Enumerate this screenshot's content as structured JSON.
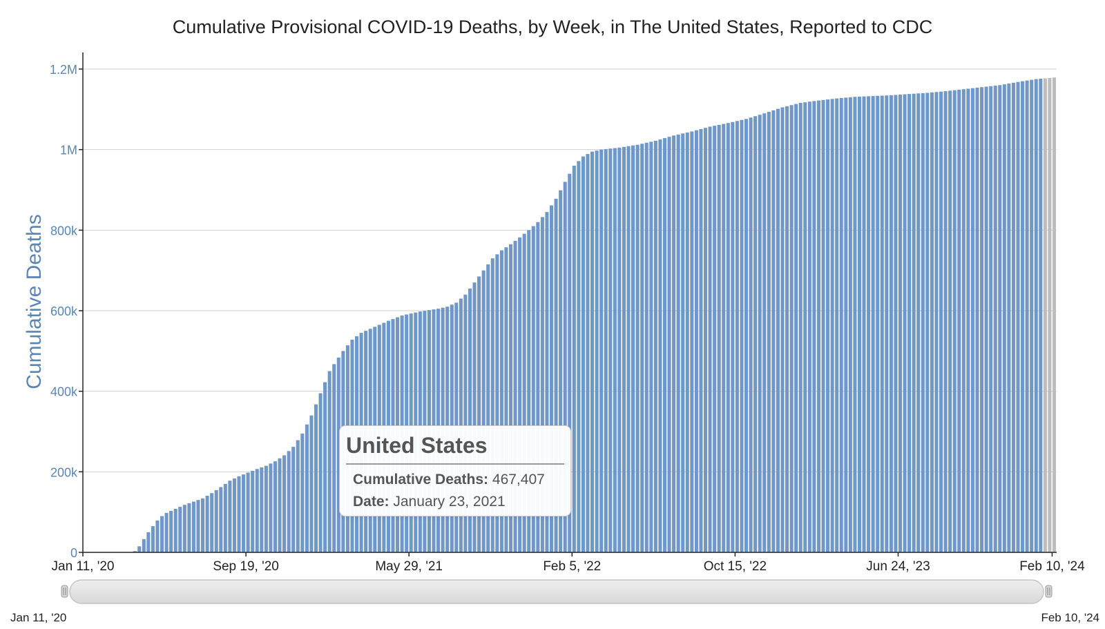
{
  "chart_data": {
    "type": "bar",
    "title": "Cumulative Provisional COVID-19 Deaths, by Week, in The United States, Reported to CDC",
    "xlabel": "",
    "ylabel": "Cumulative Deaths",
    "ylim": [
      0,
      1200000
    ],
    "y_ticks": [
      {
        "value": 0,
        "label": "0"
      },
      {
        "value": 200000,
        "label": "200k"
      },
      {
        "value": 400000,
        "label": "400k"
      },
      {
        "value": 600000,
        "label": "600k"
      },
      {
        "value": 800000,
        "label": "800k"
      },
      {
        "value": 1000000,
        "label": "1M"
      },
      {
        "value": 1200000,
        "label": "1.2M"
      }
    ],
    "x_ticks": [
      {
        "week": 0,
        "label": "Jan 11, '20"
      },
      {
        "week": 36,
        "label": "Sep 19, '20"
      },
      {
        "week": 72,
        "label": "May 29, '21"
      },
      {
        "week": 108,
        "label": "Feb 5, '22"
      },
      {
        "week": 144,
        "label": "Oct 15, '22"
      },
      {
        "week": 180,
        "label": "Jun 24, '23"
      },
      {
        "week": 214,
        "label": "Feb 10, '24"
      }
    ],
    "grid": true,
    "bar_color": "#6f97c7",
    "provisional_color": "#bdbdbd",
    "provisional_weeks": 3,
    "anchors": [
      [
        0,
        0
      ],
      [
        10,
        0
      ],
      [
        11,
        3000
      ],
      [
        12,
        15000
      ],
      [
        13,
        33000
      ],
      [
        14,
        50000
      ],
      [
        15,
        65000
      ],
      [
        16,
        79000
      ],
      [
        17,
        90000
      ],
      [
        18,
        98000
      ],
      [
        20,
        108000
      ],
      [
        22,
        118000
      ],
      [
        24,
        126000
      ],
      [
        26,
        134000
      ],
      [
        28,
        147000
      ],
      [
        30,
        162000
      ],
      [
        32,
        178000
      ],
      [
        34,
        189000
      ],
      [
        36,
        198000
      ],
      [
        38,
        207000
      ],
      [
        40,
        215000
      ],
      [
        42,
        226000
      ],
      [
        44,
        241000
      ],
      [
        46,
        262000
      ],
      [
        48,
        295000
      ],
      [
        50,
        340000
      ],
      [
        52,
        395000
      ],
      [
        54,
        450000
      ],
      [
        55,
        467407
      ],
      [
        57,
        500000
      ],
      [
        59,
        528000
      ],
      [
        61,
        545000
      ],
      [
        64,
        560000
      ],
      [
        67,
        575000
      ],
      [
        70,
        588000
      ],
      [
        74,
        598000
      ],
      [
        78,
        605000
      ],
      [
        80,
        610000
      ],
      [
        82,
        620000
      ],
      [
        84,
        640000
      ],
      [
        86,
        670000
      ],
      [
        88,
        700000
      ],
      [
        90,
        730000
      ],
      [
        92,
        750000
      ],
      [
        94,
        765000
      ],
      [
        96,
        782000
      ],
      [
        98,
        800000
      ],
      [
        100,
        820000
      ],
      [
        102,
        845000
      ],
      [
        104,
        878000
      ],
      [
        106,
        920000
      ],
      [
        108,
        960000
      ],
      [
        110,
        983000
      ],
      [
        112,
        995000
      ],
      [
        114,
        1000000
      ],
      [
        118,
        1005000
      ],
      [
        122,
        1012000
      ],
      [
        126,
        1022000
      ],
      [
        130,
        1035000
      ],
      [
        134,
        1045000
      ],
      [
        138,
        1057000
      ],
      [
        142,
        1066000
      ],
      [
        146,
        1076000
      ],
      [
        150,
        1090000
      ],
      [
        154,
        1105000
      ],
      [
        158,
        1116000
      ],
      [
        162,
        1122000
      ],
      [
        166,
        1127000
      ],
      [
        170,
        1131000
      ],
      [
        174,
        1133000
      ],
      [
        178,
        1135000
      ],
      [
        182,
        1138000
      ],
      [
        186,
        1141000
      ],
      [
        190,
        1145000
      ],
      [
        194,
        1150000
      ],
      [
        198,
        1155000
      ],
      [
        202,
        1160000
      ],
      [
        206,
        1168000
      ],
      [
        210,
        1175000
      ],
      [
        214,
        1179000
      ]
    ]
  },
  "tooltip": {
    "title": "United States",
    "deaths_label": "Cumulative Deaths:",
    "deaths_value": "467,407",
    "date_label": "Date:",
    "date_value": "January 23, 2021"
  },
  "range_selector": {
    "start_label": "Jan 11, '20",
    "end_label": "Feb 10, '24"
  }
}
